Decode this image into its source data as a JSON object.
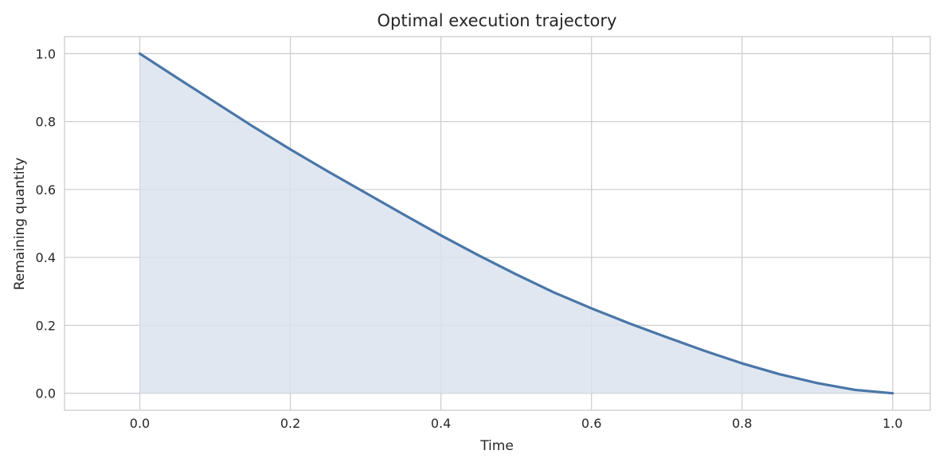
{
  "chart_data": {
    "type": "area",
    "title": "Optimal execution trajectory",
    "xlabel": "Time",
    "ylabel": "Remaining quantity",
    "xlim": [
      -0.1,
      1.05
    ],
    "ylim": [
      -0.05,
      1.05
    ],
    "xticks": [
      "0.0",
      "0.2",
      "0.4",
      "0.6",
      "0.8",
      "1.0"
    ],
    "yticks": [
      "0.0",
      "0.2",
      "0.4",
      "0.6",
      "0.8",
      "1.0"
    ],
    "grid": true,
    "series": [
      {
        "x": [
          0.0,
          0.05,
          0.1,
          0.15,
          0.2,
          0.25,
          0.3,
          0.35,
          0.4,
          0.45,
          0.5,
          0.55,
          0.6,
          0.65,
          0.7,
          0.75,
          0.8,
          0.85,
          0.9,
          0.95,
          1.0
        ],
        "y": [
          1.0,
          0.928,
          0.857,
          0.786,
          0.718,
          0.653,
          0.59,
          0.527,
          0.465,
          0.406,
          0.35,
          0.297,
          0.25,
          0.206,
          0.165,
          0.125,
          0.088,
          0.056,
          0.03,
          0.01,
          0.0
        ],
        "color": "#4a76a8",
        "fill": "#dbe3ed"
      }
    ]
  }
}
